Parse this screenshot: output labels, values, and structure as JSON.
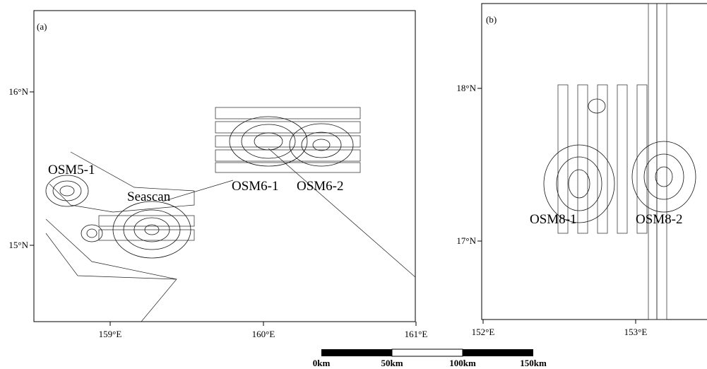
{
  "panels": [
    {
      "label": "(a)",
      "lat_ticks": [
        "16°N",
        "15°N"
      ],
      "lon_ticks": [
        "159°E",
        "160°E",
        "161°E"
      ],
      "sites": [
        "OSM5-1",
        "Seascan",
        "OSM6-1",
        "OSM6-2"
      ]
    },
    {
      "label": "(b)",
      "lat_ticks": [
        "18°N",
        "17°N"
      ],
      "lon_ticks": [
        "152°E",
        "153°E"
      ],
      "sites": [
        "OSM8-1",
        "OSM8-2"
      ]
    }
  ],
  "scale_bar": {
    "labels": [
      "0km",
      "50km",
      "100km",
      "150km"
    ]
  }
}
